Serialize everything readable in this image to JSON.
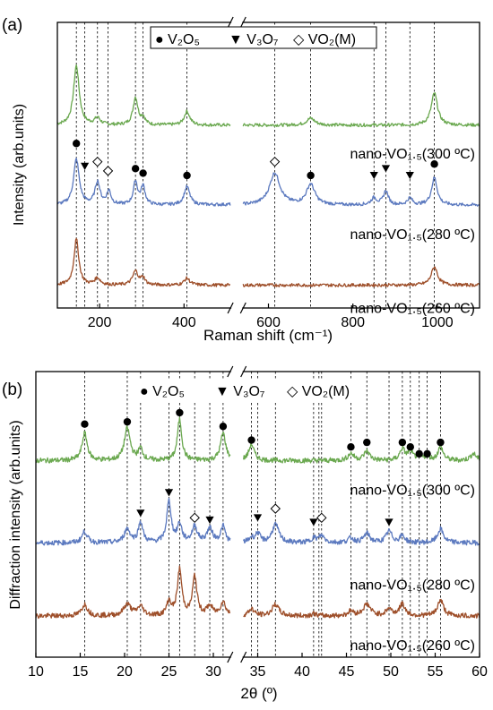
{
  "colors": {
    "green": "#6aa84f",
    "blue": "#5b79bf",
    "brown": "#9e4f2a",
    "frame": "#000000",
    "guide": "#000000"
  },
  "chart_data": [
    {
      "type": "line",
      "panel_label": "(a)",
      "xlabel": "Raman shift (cm⁻¹)",
      "ylabel": "Intensity (arb.units)",
      "xlim": [
        100,
        1100
      ],
      "axis_break": [
        510,
        540
      ],
      "xticks": [
        200,
        400,
        600,
        800,
        1000
      ],
      "legend": {
        "placement": "top-center",
        "items": [
          {
            "symbol": "●",
            "label": "V₂O₅"
          },
          {
            "symbol": "▼",
            "label": "V₃O₇"
          },
          {
            "symbol": "◇",
            "label": "VO₂(M)"
          }
        ]
      },
      "guide_lines": [
        145,
        165,
        195,
        220,
        285,
        303,
        407,
        615,
        700,
        850,
        878,
        935,
        993
      ],
      "series": [
        {
          "name": "nano-VO₁.₅(300 ºC)",
          "color": "green",
          "offset": 80,
          "peaks": [
            [
              145,
              26,
              8
            ],
            [
              195,
              3,
              8
            ],
            [
              285,
              12,
              7
            ],
            [
              303,
              3,
              6
            ],
            [
              407,
              6,
              8
            ],
            [
              700,
              3,
              12
            ],
            [
              993,
              14,
              9
            ]
          ]
        },
        {
          "name": "nano-VO₁.₅(280 ºC)",
          "color": "blue",
          "offset": 45,
          "peaks": [
            [
              145,
              20,
              8
            ],
            [
              195,
              10,
              7
            ],
            [
              222,
              6,
              6
            ],
            [
              285,
              10,
              6
            ],
            [
              303,
              8,
              6
            ],
            [
              407,
              8,
              8
            ],
            [
              615,
              14,
              15
            ],
            [
              700,
              9,
              12
            ],
            [
              850,
              3,
              8
            ],
            [
              878,
              6,
              7
            ],
            [
              935,
              3,
              7
            ],
            [
              993,
              12,
              8
            ]
          ]
        },
        {
          "name": "nano-VO₁.₅(260 ºC)",
          "color": "brown",
          "offset": 10,
          "peaks": [
            [
              145,
              20,
              7
            ],
            [
              195,
              3,
              8
            ],
            [
              285,
              6,
              8
            ],
            [
              303,
              3,
              6
            ],
            [
              407,
              3,
              8
            ],
            [
              993,
              8,
              9
            ]
          ]
        }
      ],
      "markers": [
        {
          "type": "dot",
          "x": 145,
          "y": 72
        },
        {
          "type": "tri",
          "x": 165,
          "y": 62
        },
        {
          "type": "dia",
          "x": 195,
          "y": 64
        },
        {
          "type": "dia",
          "x": 220,
          "y": 60
        },
        {
          "type": "dot",
          "x": 285,
          "y": 61
        },
        {
          "type": "dot",
          "x": 303,
          "y": 59
        },
        {
          "type": "dot",
          "x": 407,
          "y": 58
        },
        {
          "type": "dia",
          "x": 615,
          "y": 64
        },
        {
          "type": "dot",
          "x": 700,
          "y": 58
        },
        {
          "type": "tri",
          "x": 850,
          "y": 58
        },
        {
          "type": "tri",
          "x": 878,
          "y": 61
        },
        {
          "type": "tri",
          "x": 935,
          "y": 58
        },
        {
          "type": "dot",
          "x": 993,
          "y": 63
        }
      ]
    },
    {
      "type": "line",
      "panel_label": "(b)",
      "xlabel": "2θ (º)",
      "ylabel": "Diffraction intensity (arb.units)",
      "xlim": [
        10,
        60
      ],
      "axis_break": [
        31.9,
        33.4
      ],
      "xticks": [
        10,
        15,
        20,
        25,
        30,
        35,
        40,
        45,
        50,
        55,
        60
      ],
      "legend": {
        "placement": "top-center",
        "items": [
          {
            "symbol": "●",
            "label": "V₂O₅"
          },
          {
            "symbol": "▼",
            "label": "V₃O₇"
          },
          {
            "symbol": "◇",
            "label": "VO₂(M)"
          }
        ]
      },
      "guide_lines": [
        15.5,
        20.3,
        21.8,
        25,
        26.2,
        27.9,
        29.6,
        31.1,
        34.3,
        35,
        37,
        41.3,
        41.9,
        42.2,
        45.5,
        47.3,
        49.8,
        51.3,
        52.2,
        53.2,
        54.1,
        55.6
      ],
      "series": [
        {
          "name": "nano-VO₁.₅(300 ºC)",
          "color": "green",
          "offset": 86,
          "peaks": [
            [
              15.5,
              12,
              0.35
            ],
            [
              20.3,
              14,
              0.4
            ],
            [
              21.8,
              5,
              0.3
            ],
            [
              26.2,
              18,
              0.3
            ],
            [
              31.1,
              12,
              0.35
            ],
            [
              34.3,
              7,
              0.35
            ],
            [
              45.5,
              3,
              0.4
            ],
            [
              47.3,
              4,
              0.4
            ],
            [
              51.3,
              5,
              0.35
            ],
            [
              52.2,
              4,
              0.3
            ],
            [
              53.2,
              2,
              0.3
            ],
            [
              54.1,
              2,
              0.3
            ],
            [
              55.6,
              6,
              0.35
            ],
            [
              59.3,
              3,
              0.4
            ]
          ]
        },
        {
          "name": "nano-VO₁.₅(280 ºC)",
          "color": "blue",
          "offset": 50,
          "peaks": [
            [
              15.5,
              5,
              0.35
            ],
            [
              20.3,
              6,
              0.4
            ],
            [
              21.8,
              9,
              0.3
            ],
            [
              25,
              18,
              0.3
            ],
            [
              26.2,
              8,
              0.3
            ],
            [
              27.9,
              7,
              0.35
            ],
            [
              29.6,
              6,
              0.4
            ],
            [
              31.1,
              7,
              0.3
            ],
            [
              34.3,
              2,
              0.3
            ],
            [
              35,
              4,
              0.3
            ],
            [
              37,
              8,
              0.45
            ],
            [
              41.3,
              2,
              0.3
            ],
            [
              42.2,
              3,
              0.4
            ],
            [
              45.5,
              2,
              0.4
            ],
            [
              47.3,
              4,
              0.4
            ],
            [
              49.8,
              5,
              0.4
            ],
            [
              51.3,
              3,
              0.35
            ],
            [
              55.6,
              6,
              0.4
            ]
          ]
        },
        {
          "name": "nano-VO₁.₅(260 ºC)",
          "color": "brown",
          "offset": 18,
          "peaks": [
            [
              15.5,
              5,
              0.4
            ],
            [
              20.3,
              5,
              0.5
            ],
            [
              21.8,
              4,
              0.4
            ],
            [
              25,
              6,
              0.3
            ],
            [
              26.2,
              20,
              0.3
            ],
            [
              27.9,
              17,
              0.3
            ],
            [
              29.6,
              4,
              0.4
            ],
            [
              31.1,
              6,
              0.35
            ],
            [
              34.3,
              3,
              0.35
            ],
            [
              37,
              5,
              0.45
            ],
            [
              41.3,
              1,
              0.3
            ],
            [
              45.5,
              2,
              0.4
            ],
            [
              47.3,
              5,
              0.5
            ],
            [
              49.8,
              3,
              0.4
            ],
            [
              51.3,
              5,
              0.4
            ],
            [
              55.6,
              7,
              0.4
            ]
          ]
        }
      ],
      "markers": [
        {
          "type": "dot",
          "x": 15.5,
          "y": 102
        },
        {
          "type": "dot",
          "x": 20.3,
          "y": 103
        },
        {
          "type": "dot",
          "x": 26.2,
          "y": 107
        },
        {
          "type": "dot",
          "x": 31.1,
          "y": 101
        },
        {
          "type": "dot",
          "x": 34.3,
          "y": 95
        },
        {
          "type": "dot",
          "x": 45.5,
          "y": 92
        },
        {
          "type": "dot",
          "x": 47.3,
          "y": 94
        },
        {
          "type": "dot",
          "x": 51.3,
          "y": 94
        },
        {
          "type": "dot",
          "x": 52.2,
          "y": 92
        },
        {
          "type": "dot",
          "x": 53.2,
          "y": 89
        },
        {
          "type": "dot",
          "x": 54.1,
          "y": 89
        },
        {
          "type": "dot",
          "x": 55.6,
          "y": 94
        },
        {
          "type": "tri",
          "x": 21.8,
          "y": 63
        },
        {
          "type": "tri",
          "x": 25,
          "y": 72
        },
        {
          "type": "tri",
          "x": 29.6,
          "y": 60
        },
        {
          "type": "tri",
          "x": 35,
          "y": 61
        },
        {
          "type": "tri",
          "x": 41.3,
          "y": 59
        },
        {
          "type": "tri",
          "x": 49.8,
          "y": 59
        },
        {
          "type": "dia",
          "x": 27.9,
          "y": 61
        },
        {
          "type": "dia",
          "x": 37,
          "y": 65
        },
        {
          "type": "dia",
          "x": 42.2,
          "y": 61
        }
      ]
    }
  ]
}
